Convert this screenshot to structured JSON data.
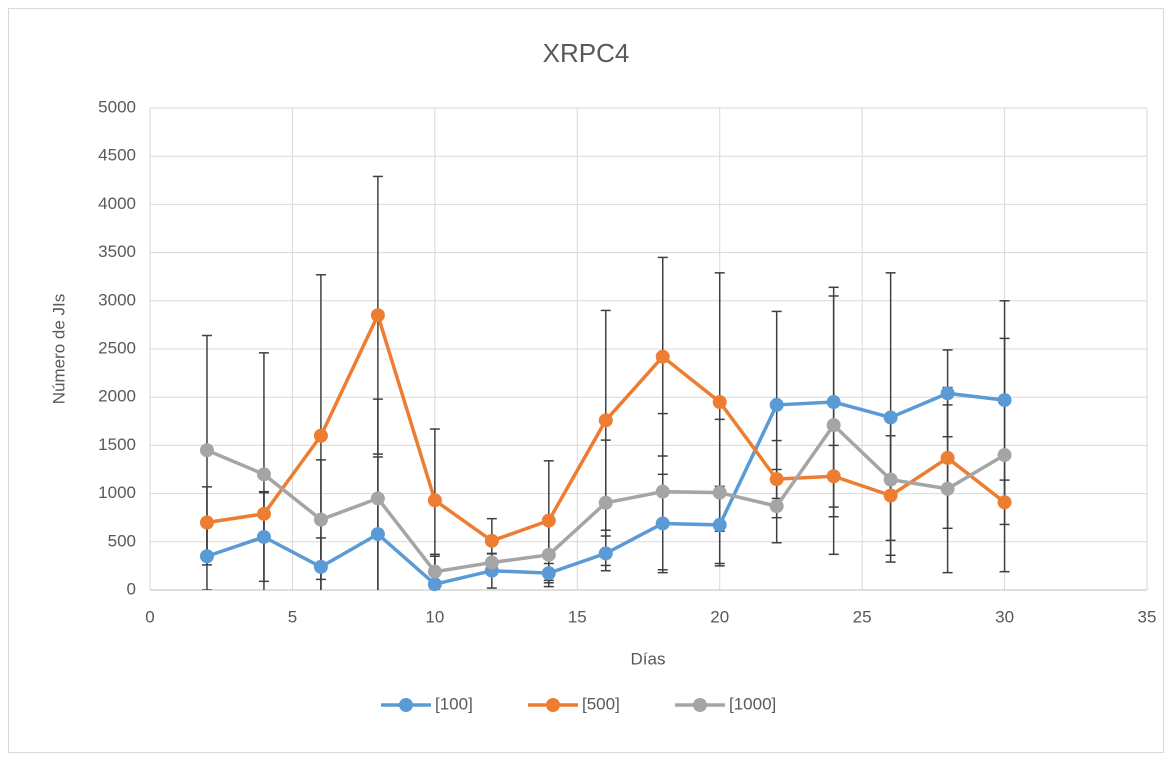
{
  "chart_data": {
    "type": "line",
    "title": "XRPC4",
    "x_label": "Días",
    "y_label": "Número de JIs",
    "x": [
      2,
      4,
      6,
      8,
      10,
      12,
      14,
      16,
      18,
      20,
      22,
      24,
      26,
      28,
      30
    ],
    "series": [
      {
        "name": "[100]",
        "color": "#5b9bd5",
        "values": [
          350,
          550,
          240,
          580,
          60,
          200,
          175,
          380,
          690,
          675,
          1920,
          1950,
          1790,
          2040,
          1970
        ],
        "errors": [
          350,
          460,
          300,
          800,
          290,
          180,
          100,
          180,
          510,
          400,
          970,
          1190,
          1500,
          450,
          1030
        ]
      },
      {
        "name": "[500]",
        "color": "#ed7d31",
        "values": [
          700,
          790,
          1600,
          2850,
          930,
          510,
          720,
          1760,
          2420,
          1950,
          1150,
          1180,
          980,
          1370,
          910
        ],
        "errors": [
          370,
          230,
          1670,
          1440,
          740,
          230,
          620,
          1140,
          1030,
          1340,
          400,
          320,
          620,
          730,
          230
        ]
      },
      {
        "name": "[1000]",
        "color": "#a5a5a5",
        "values": [
          1450,
          1200,
          730,
          950,
          190,
          285,
          365,
          905,
          1020,
          1010,
          870,
          1710,
          1145,
          1050,
          1400
        ],
        "errors": [
          1190,
          1260,
          620,
          1030,
          180,
          90,
          330,
          650,
          810,
          760,
          380,
          1340,
          630,
          870,
          1210
        ]
      }
    ],
    "error_bar_color": "#404040",
    "xlim": [
      0,
      35
    ],
    "xticks": [
      0,
      5,
      10,
      15,
      20,
      25,
      30,
      35
    ],
    "ylim": [
      0,
      5000
    ],
    "yticks": [
      0,
      500,
      1000,
      1500,
      2000,
      2500,
      3000,
      3500,
      4000,
      4500,
      5000
    ],
    "grid": true,
    "legend": "bottom"
  }
}
